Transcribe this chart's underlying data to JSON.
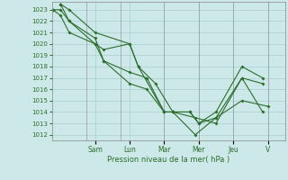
{
  "title": "",
  "xlabel": "Pression niveau de la mer( hPa )",
  "ylabel": "",
  "bg_color": "#cce8e8",
  "line_color": "#2d6e2d",
  "grid_color": "#aacfcf",
  "ylim": [
    1011.5,
    1023.7
  ],
  "yticks": [
    1012,
    1013,
    1014,
    1015,
    1016,
    1017,
    1018,
    1019,
    1020,
    1021,
    1022,
    1023
  ],
  "day_labels": [
    "Sam",
    "Lun",
    "Mar",
    "Mer",
    "Jeu",
    "V"
  ],
  "day_positions": [
    2.5,
    4.5,
    6.5,
    8.5,
    10.5,
    12.5
  ],
  "xlim": [
    0,
    13.5
  ],
  "series": [
    {
      "x": [
        0.05,
        0.5,
        1.0,
        2.5,
        3.0,
        4.5,
        5.0,
        6.0,
        7.0,
        8.0,
        8.5,
        9.5,
        11.0,
        12.5
      ],
      "y": [
        1023.0,
        1023.0,
        1022.0,
        1020.0,
        1019.5,
        1020.0,
        1018.0,
        1016.5,
        1014.0,
        1014.0,
        1013.0,
        1013.5,
        1015.0,
        1014.5
      ]
    },
    {
      "x": [
        0.05,
        0.5,
        1.0,
        2.5,
        3.0,
        4.5,
        5.5,
        6.5,
        7.0,
        8.3,
        9.5,
        11.0,
        12.2
      ],
      "y": [
        1023.0,
        1022.5,
        1021.0,
        1020.0,
        1018.5,
        1017.5,
        1017.0,
        1014.0,
        1014.0,
        1012.0,
        1013.5,
        1017.0,
        1016.5
      ]
    },
    {
      "x": [
        0.5,
        1.0,
        2.5,
        4.5,
        5.0,
        6.5,
        7.0,
        8.0,
        8.5,
        9.5,
        11.0,
        12.2
      ],
      "y": [
        1023.5,
        1023.0,
        1021.0,
        1020.0,
        1018.0,
        1014.0,
        1014.0,
        1014.0,
        1013.0,
        1014.0,
        1018.0,
        1017.0
      ]
    },
    {
      "x": [
        0.5,
        1.0,
        2.5,
        3.0,
        4.5,
        5.5,
        6.5,
        7.0,
        8.3,
        9.5,
        11.0,
        12.2
      ],
      "y": [
        1023.5,
        1022.0,
        1020.5,
        1018.5,
        1016.5,
        1016.0,
        1014.0,
        1014.0,
        1013.5,
        1013.0,
        1017.0,
        1014.0
      ]
    }
  ]
}
